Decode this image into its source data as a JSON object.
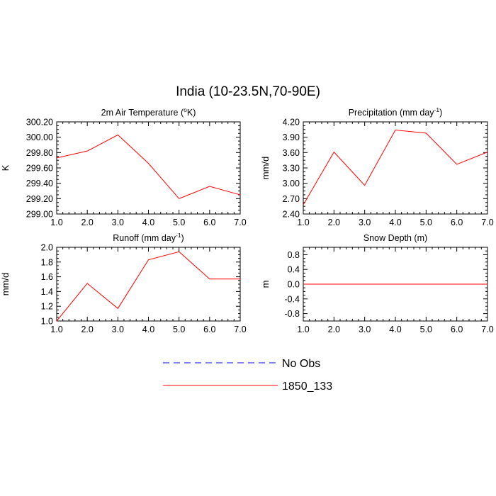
{
  "figure": {
    "title": "India (10-23.5N,70-90E)"
  },
  "colors": {
    "model": "#ff0000",
    "obs": "#0000ff",
    "axis": "#000000"
  },
  "legend": {
    "entries": [
      {
        "label": "No Obs",
        "style": "dashed",
        "color": "#0000ff"
      },
      {
        "label": "1850_133",
        "style": "solid",
        "color": "#ff0000"
      }
    ]
  },
  "chart_data": [
    {
      "type": "line",
      "title": "2m Air Temperature (",
      "title_sup": "o",
      "title_end": "K)",
      "ylabel": "K",
      "xlim": [
        1,
        7
      ],
      "ylim": [
        299.0,
        300.2
      ],
      "x_ticks": [
        1,
        2,
        3,
        4,
        5,
        6,
        7
      ],
      "x_tick_labels": [
        "1.0",
        "2.0",
        "3.0",
        "4.0",
        "5.0",
        "6.0",
        "7.0"
      ],
      "y_ticks": [
        299.0,
        299.2,
        299.4,
        299.6,
        299.8,
        300.0,
        300.2
      ],
      "y_tick_labels": [
        "299.00",
        "299.20",
        "299.40",
        "299.60",
        "299.80",
        "300.00",
        "300.20"
      ],
      "series": [
        {
          "name": "1850_133",
          "x": [
            1,
            2,
            3,
            4,
            5,
            6,
            7
          ],
          "values": [
            299.73,
            299.82,
            300.03,
            299.66,
            299.2,
            299.36,
            299.25
          ]
        }
      ]
    },
    {
      "type": "line",
      "title": "Precipitation (mm day",
      "title_sup": "-1",
      "title_end": ")",
      "ylabel": "mm/d",
      "xlim": [
        1,
        7
      ],
      "ylim": [
        2.4,
        4.2
      ],
      "x_ticks": [
        1,
        2,
        3,
        4,
        5,
        6,
        7
      ],
      "x_tick_labels": [
        "1.0",
        "2.0",
        "3.0",
        "4.0",
        "5.0",
        "6.0",
        "7.0"
      ],
      "y_ticks": [
        2.4,
        2.7,
        3.0,
        3.3,
        3.6,
        3.9,
        4.2
      ],
      "y_tick_labels": [
        "2.40",
        "2.70",
        "3.00",
        "3.30",
        "3.60",
        "3.90",
        "4.20"
      ],
      "series": [
        {
          "name": "1850_133",
          "x": [
            1,
            2,
            3,
            4,
            5,
            6,
            7
          ],
          "values": [
            2.58,
            3.61,
            2.96,
            4.04,
            3.98,
            3.37,
            3.61
          ]
        }
      ]
    },
    {
      "type": "line",
      "title": "Runoff (mm day",
      "title_sup": "-1",
      "title_end": ")",
      "ylabel": "mm/d",
      "xlim": [
        1,
        7
      ],
      "ylim": [
        1.0,
        2.0
      ],
      "x_ticks": [
        1,
        2,
        3,
        4,
        5,
        6,
        7
      ],
      "x_tick_labels": [
        "1.0",
        "2.0",
        "3.0",
        "4.0",
        "5.0",
        "6.0",
        "7.0"
      ],
      "y_ticks": [
        1.0,
        1.2,
        1.4,
        1.6,
        1.8,
        2.0
      ],
      "y_tick_labels": [
        "1.0",
        "1.2",
        "1.4",
        "1.6",
        "1.8",
        "2.0"
      ],
      "series": [
        {
          "name": "1850_133",
          "x": [
            1,
            2,
            3,
            4,
            5,
            6,
            7
          ],
          "values": [
            1.0,
            1.51,
            1.17,
            1.83,
            1.94,
            1.57,
            1.57
          ]
        }
      ]
    },
    {
      "type": "line",
      "title": "Snow Depth (m)",
      "title_sup": "",
      "title_end": "",
      "ylabel": "m",
      "xlim": [
        1,
        7
      ],
      "ylim": [
        -1.0,
        1.0
      ],
      "x_ticks": [
        1,
        2,
        3,
        4,
        5,
        6,
        7
      ],
      "x_tick_labels": [
        "1.0",
        "2.0",
        "3.0",
        "4.0",
        "5.0",
        "6.0",
        "7.0"
      ],
      "y_ticks": [
        -0.8,
        -0.4,
        0.0,
        0.4,
        0.8
      ],
      "y_tick_labels": [
        "-0.8",
        "-0.4",
        "0.0",
        "0.4",
        "0.8"
      ],
      "series": [
        {
          "name": "1850_133",
          "x": [
            1,
            2,
            3,
            4,
            5,
            6,
            7
          ],
          "values": [
            0,
            0,
            0,
            0,
            0,
            0,
            0
          ]
        }
      ]
    }
  ]
}
